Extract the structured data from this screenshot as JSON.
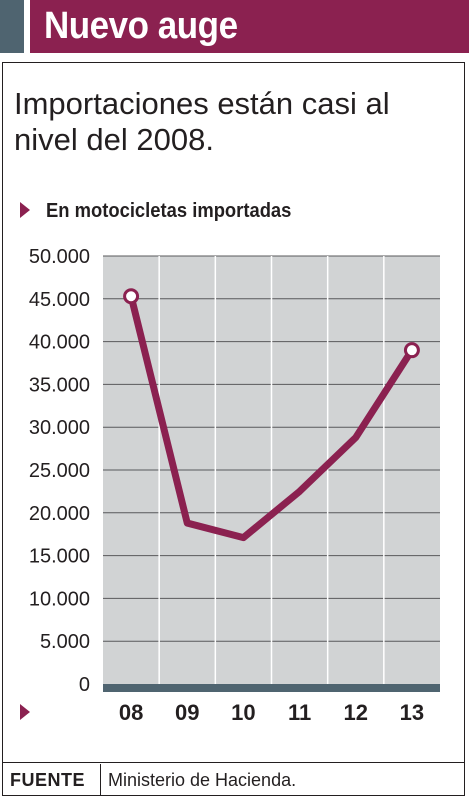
{
  "header": {
    "title": "Nuevo auge"
  },
  "subtitle": "Importaciones están casi al nivel del 2008.",
  "footer": {
    "label": "FUENTE",
    "source": "Ministerio de Hacienda."
  },
  "colors": {
    "accent": "#8b2150",
    "header_tab": "#4f6470",
    "plot_background": "#d1d3d4",
    "axis_bar": "#4f6470",
    "gridline": "#58595b"
  },
  "chart_data": {
    "type": "line",
    "series_label": "En motocicletas importadas",
    "categories": [
      "08",
      "09",
      "10",
      "11",
      "12",
      "13"
    ],
    "series": [
      {
        "values": [
          45300,
          18800,
          17100,
          22500,
          28800,
          39000
        ]
      }
    ],
    "ylim": [
      0,
      50000
    ],
    "yticks": [
      0,
      5000,
      10000,
      15000,
      20000,
      25000,
      30000,
      35000,
      40000,
      45000,
      50000
    ],
    "ytick_labels": [
      "0",
      "5.000",
      "10.000",
      "15.000",
      "20.000",
      "25.000",
      "30.000",
      "35.000",
      "40.000",
      "45.000",
      "50.000"
    ],
    "grid": true,
    "markers_on": [
      "08",
      "13"
    ]
  }
}
